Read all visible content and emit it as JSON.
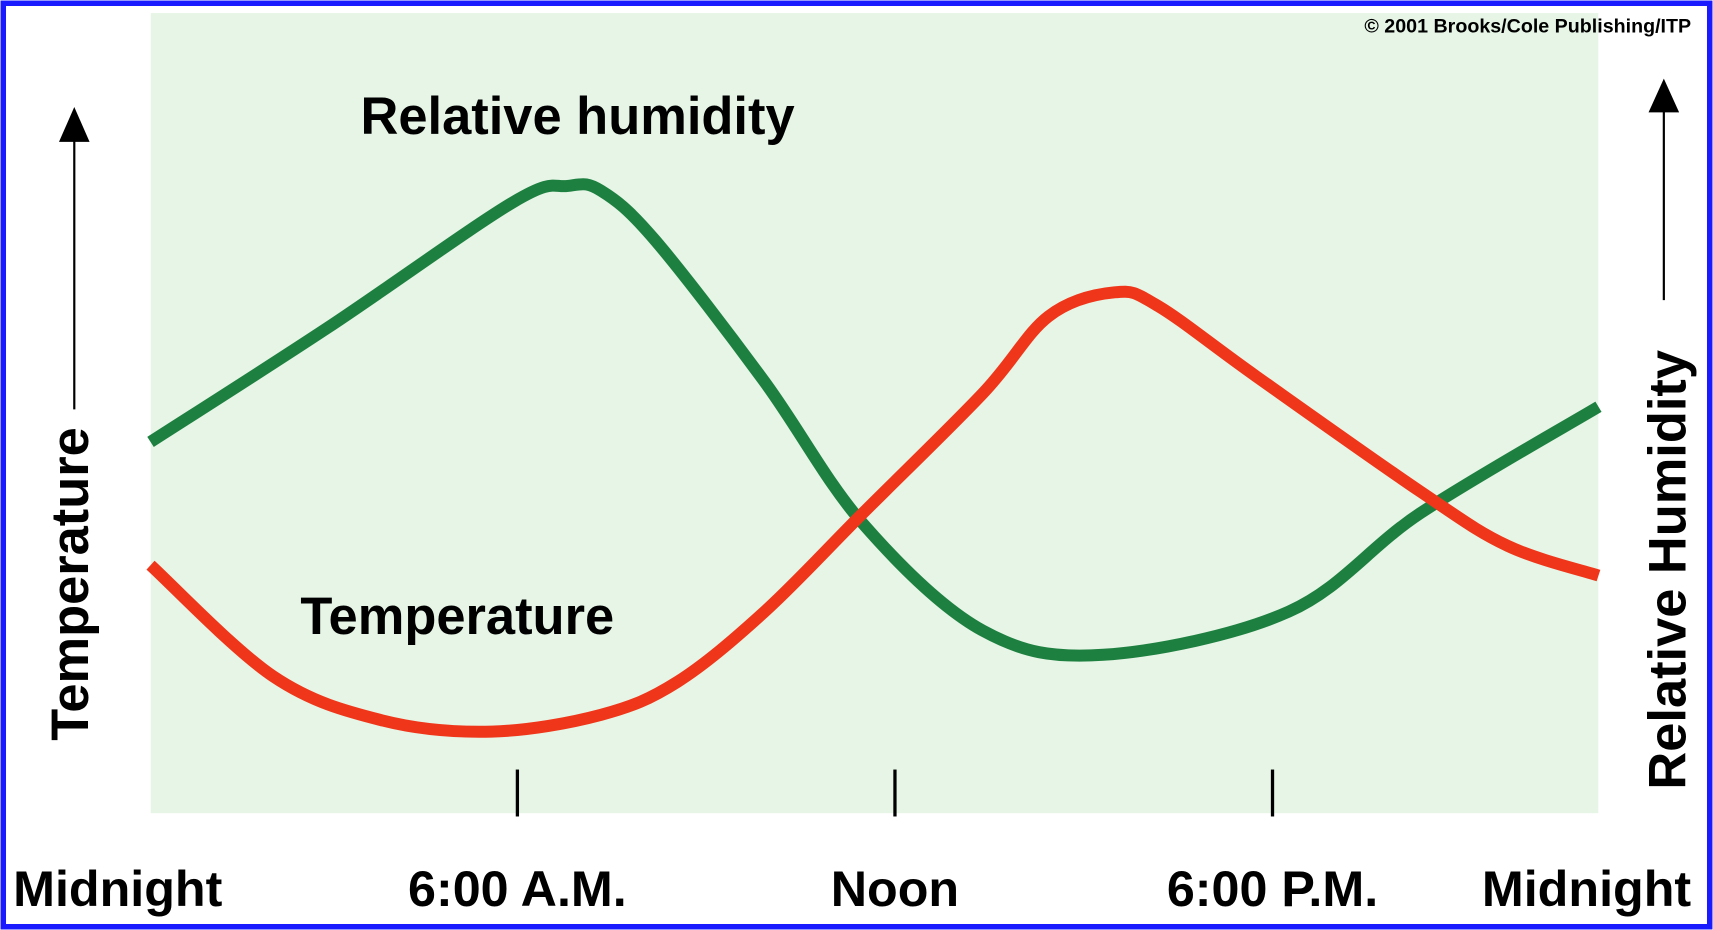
{
  "chart_data": {
    "type": "line",
    "copyright": "© 2001 Brooks/Cole Publishing/ITP",
    "y_label": "Temperature",
    "y2_label": "Relative Humidity",
    "xlim": [
      0,
      24
    ],
    "xticks": [
      {
        "value": 0,
        "label": "Midnight"
      },
      {
        "value": 6,
        "label": "6:00 A.M."
      },
      {
        "value": 12,
        "label": "Noon"
      },
      {
        "value": 18,
        "label": "6:00 P.M."
      },
      {
        "value": 24,
        "label": "Midnight"
      }
    ],
    "ylim": [
      0,
      100
    ],
    "series": [
      {
        "name": "Relative humidity",
        "color": "#1e8040",
        "x": [
          0.17,
          2.99,
          5.94,
          6.8,
          7.33,
          8.19,
          9.93,
          11.49,
          13.4,
          15.31,
          18.26,
          20.35,
          23.18
        ],
        "values": [
          46.4,
          60.7,
          76.4,
          78.4,
          77.8,
          71.6,
          53.9,
          36.2,
          22.8,
          19.8,
          25.2,
          37.5,
          50.8
        ]
      },
      {
        "name": "Temperature",
        "color": "#f0361a",
        "x": [
          0.17,
          2.12,
          3.85,
          5.59,
          7.33,
          8.54,
          9.93,
          11.49,
          13.4,
          14.44,
          15.49,
          16.18,
          17.74,
          20.35,
          21.74,
          23.18
        ],
        "values": [
          31.0,
          17.1,
          11.6,
          10.2,
          12.3,
          16.4,
          25.2,
          37.5,
          52.5,
          62.1,
          65.1,
          63.4,
          54.6,
          40.2,
          33.4,
          29.7
        ]
      }
    ]
  }
}
